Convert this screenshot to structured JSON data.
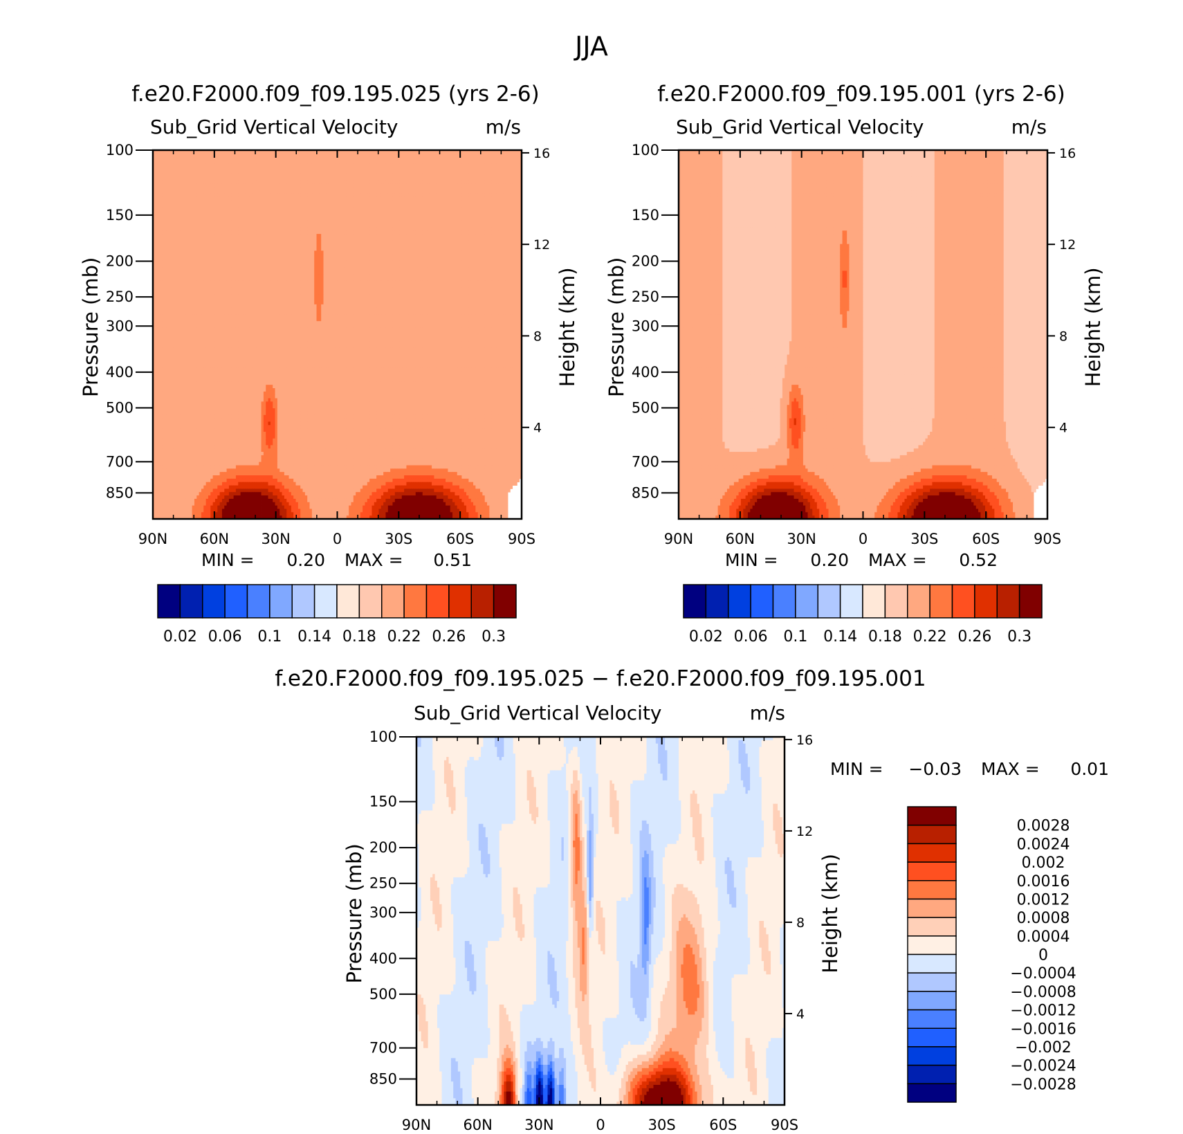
{
  "figure": {
    "title": "JJA"
  },
  "colors": {
    "seq": [
      "#000080",
      "#0020b0",
      "#0040e0",
      "#2060ff",
      "#4a80ff",
      "#80a8ff",
      "#b0c8ff",
      "#d8e8ff",
      "#ffe8d8",
      "#ffc8b0",
      "#ffa880",
      "#ff7840",
      "#ff5020",
      "#e03000",
      "#b82000",
      "#800000"
    ],
    "diff": [
      "#000080",
      "#0020b0",
      "#0040e0",
      "#2060ff",
      "#4a80ff",
      "#80a8ff",
      "#b0c8ff",
      "#d8e8ff",
      "#fff0e4",
      "#ffd0b8",
      "#ffa880",
      "#ff7840",
      "#ff5020",
      "#e03000",
      "#b82000",
      "#800000"
    ]
  },
  "chart_data": [
    {
      "type": "heatmap",
      "title": "f.e20.F2000.f09_f09.195.025 (yrs 2-6)",
      "variable": "Sub_Grid Vertical Velocity",
      "units": "m/s",
      "x_ticks": [
        "90N",
        "60N",
        "30N",
        "0",
        "30S",
        "60S",
        "90S"
      ],
      "x_range": [
        90,
        -90
      ],
      "y_label": "Pressure (mb)",
      "y_ticks": [
        100,
        150,
        200,
        250,
        300,
        400,
        500,
        700,
        850
      ],
      "y_range": [
        100,
        1000
      ],
      "y2_label": "Height (km)",
      "y2_ticks": [
        16,
        12,
        8,
        4
      ],
      "min_label": "MIN =",
      "min_value": "0.20",
      "max_label": "MAX =",
      "max_value": "0.51",
      "colorbar_levels": [
        0.02,
        0.04,
        0.06,
        0.08,
        0.1,
        0.12,
        0.14,
        0.16,
        0.18,
        0.2,
        0.22,
        0.24,
        0.26,
        0.28,
        0.3
      ],
      "colorbar_labels": [
        "0.02",
        "0.06",
        "0.1",
        "0.14",
        "0.18",
        "0.22",
        "0.26",
        "0.3"
      ]
    },
    {
      "type": "heatmap",
      "title": "f.e20.F2000.f09_f09.195.001 (yrs 2-6)",
      "variable": "Sub_Grid Vertical Velocity",
      "units": "m/s",
      "x_ticks": [
        "90N",
        "60N",
        "30N",
        "0",
        "30S",
        "60S",
        "90S"
      ],
      "x_range": [
        90,
        -90
      ],
      "y_label": "Pressure (mb)",
      "y_ticks": [
        100,
        150,
        200,
        250,
        300,
        400,
        500,
        700,
        850
      ],
      "y_range": [
        100,
        1000
      ],
      "y2_label": "Height (km)",
      "y2_ticks": [
        16,
        12,
        8,
        4
      ],
      "min_label": "MIN =",
      "min_value": "0.20",
      "max_label": "MAX =",
      "max_value": "0.52",
      "colorbar_levels": [
        0.02,
        0.04,
        0.06,
        0.08,
        0.1,
        0.12,
        0.14,
        0.16,
        0.18,
        0.2,
        0.22,
        0.24,
        0.26,
        0.28,
        0.3
      ],
      "colorbar_labels": [
        "0.02",
        "0.06",
        "0.1",
        "0.14",
        "0.18",
        "0.22",
        "0.26",
        "0.3"
      ]
    },
    {
      "type": "heatmap",
      "title": "f.e20.F2000.f09_f09.195.025 − f.e20.F2000.f09_f09.195.001",
      "variable": "Sub_Grid Vertical Velocity",
      "units": "m/s",
      "x_ticks": [
        "90N",
        "60N",
        "30N",
        "0",
        "30S",
        "60S",
        "90S"
      ],
      "x_range": [
        90,
        -90
      ],
      "y_label": "Pressure (mb)",
      "y_ticks": [
        100,
        150,
        200,
        250,
        300,
        400,
        500,
        700,
        850
      ],
      "y_range": [
        100,
        1000
      ],
      "y2_label": "Height (km)",
      "y2_ticks": [
        16,
        12,
        8,
        4
      ],
      "min_label": "MIN =",
      "min_value": "−0.03",
      "max_label": "MAX =",
      "max_value": "0.01",
      "colorbar_labels": [
        "0.0028",
        "0.0024",
        "0.002",
        "0.0016",
        "0.0012",
        "0.0008",
        "0.0004",
        "0",
        "−0.0004",
        "−0.0008",
        "−0.0012",
        "−0.0016",
        "−0.002",
        "−0.0024",
        "−0.0028"
      ]
    }
  ]
}
